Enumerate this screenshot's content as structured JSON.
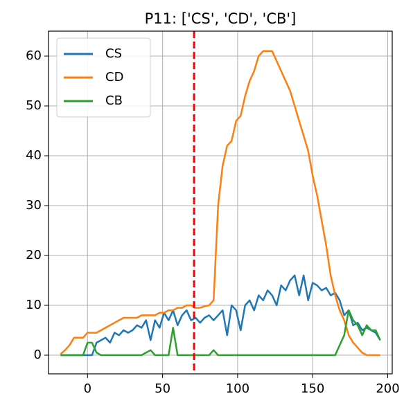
{
  "chart_data": {
    "type": "line",
    "title": "P11: ['CS', 'CD', 'CB']",
    "x": [
      -18,
      -15,
      -12,
      -9,
      -6,
      -3,
      0,
      3,
      6,
      9,
      12,
      15,
      18,
      21,
      24,
      27,
      30,
      33,
      36,
      39,
      42,
      45,
      48,
      51,
      54,
      57,
      60,
      63,
      66,
      69,
      72,
      75,
      78,
      81,
      84,
      87,
      90,
      93,
      96,
      99,
      102,
      105,
      108,
      111,
      114,
      117,
      120,
      123,
      126,
      129,
      132,
      135,
      138,
      141,
      144,
      147,
      150,
      153,
      156,
      159,
      162,
      165,
      168,
      171,
      174,
      177,
      180,
      183,
      186,
      189,
      192,
      195
    ],
    "series": [
      {
        "name": "CS",
        "color": "#1f77b4",
        "values": [
          0,
          0,
          0,
          0,
          0,
          0,
          0,
          0,
          2.5,
          3,
          3.5,
          2.5,
          4.5,
          4,
          5,
          4.5,
          5,
          6,
          5.5,
          7,
          3,
          7,
          5.5,
          8.5,
          7,
          9,
          6,
          8,
          9,
          7,
          7.5,
          6.5,
          7.5,
          8,
          7,
          8,
          9,
          4,
          10,
          9,
          5,
          10,
          11,
          9,
          12,
          11,
          13,
          12,
          10,
          14,
          13,
          15,
          16,
          12,
          16,
          11,
          14.5,
          14,
          13,
          13.5,
          12,
          12.5,
          11,
          8,
          9,
          6,
          6.5,
          5,
          5.5,
          5,
          4.5,
          3
        ]
      },
      {
        "name": "CD",
        "color": "#ff7f0e",
        "values": [
          0.2,
          1,
          2,
          3.5,
          3.5,
          3.5,
          4.5,
          4.5,
          4.5,
          5,
          5.5,
          6,
          6.5,
          7,
          7.5,
          7.5,
          7.5,
          7.5,
          8,
          8,
          8,
          8,
          8.5,
          8.5,
          9,
          9,
          9.5,
          9.5,
          10,
          10,
          9.5,
          9.5,
          9.8,
          10,
          11,
          30,
          38,
          42,
          43,
          47,
          48,
          52,
          55,
          57,
          60,
          61,
          61,
          61,
          59,
          57,
          55,
          53,
          50,
          47,
          44,
          41,
          36,
          32,
          27,
          22,
          16,
          12,
          9,
          7,
          4,
          2.5,
          1.5,
          0.5,
          0,
          0,
          0,
          0
        ]
      },
      {
        "name": "CB",
        "color": "#2ca02c",
        "values": [
          0,
          0,
          0,
          0,
          0,
          0,
          2.5,
          2.5,
          0.5,
          0,
          0,
          0,
          0,
          0,
          0,
          0,
          0,
          0,
          0,
          0.5,
          1,
          0,
          0,
          0,
          0,
          5.5,
          0,
          0,
          0,
          0,
          0,
          0,
          0,
          0,
          1,
          0,
          0,
          0,
          0,
          0,
          0,
          0,
          0,
          0,
          0,
          0,
          0,
          0,
          0,
          0,
          0,
          0,
          0,
          0,
          0,
          0,
          0,
          0,
          0,
          0,
          0,
          0,
          2,
          4,
          9,
          7,
          6,
          4,
          6,
          5,
          5,
          3
        ]
      }
    ],
    "vline": 71,
    "vline_color": "#ff0000",
    "xlim": [
      -26,
      203
    ],
    "ylim": [
      -3.75,
      65
    ],
    "xticks": [
      0,
      50,
      100,
      150,
      200
    ],
    "yticks": [
      0,
      10,
      20,
      30,
      40,
      50,
      60
    ],
    "grid": true,
    "legend": "upper left"
  }
}
